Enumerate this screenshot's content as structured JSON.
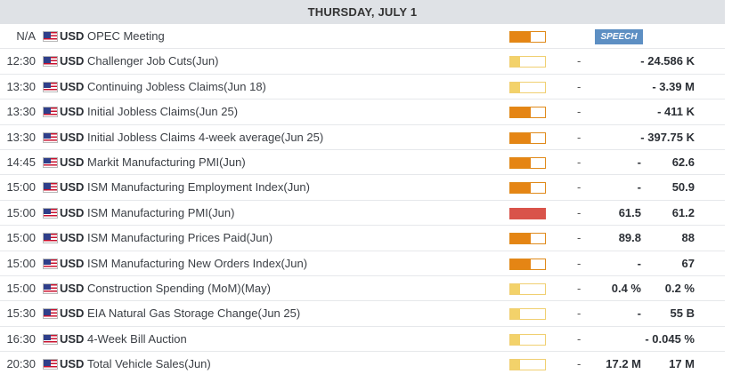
{
  "header": {
    "day": "THURSDAY, JULY 1"
  },
  "colors": {
    "medium_impact": "#e58514",
    "low_impact": "#f3d26a",
    "high_impact": "#d9534a",
    "speech_badge": "#5d8fc3"
  },
  "events": [
    {
      "time": "N/A",
      "currency": "USD",
      "flag": "us-flag-icon",
      "name": "OPEC Meeting",
      "impact": "medium",
      "badge": "SPEECH",
      "actual": "",
      "forecast": "",
      "previous": ""
    },
    {
      "time": "12:30",
      "currency": "USD",
      "flag": "us-flag-icon",
      "name": "Challenger Job Cuts(Jun)",
      "impact": "low",
      "actual": "-",
      "forecast": "",
      "previous": "- 24.586 K"
    },
    {
      "time": "13:30",
      "currency": "USD",
      "flag": "us-flag-icon",
      "name": "Continuing Jobless Claims(Jun 18)",
      "impact": "low",
      "actual": "-",
      "forecast": "",
      "previous": "- 3.39 M"
    },
    {
      "time": "13:30",
      "currency": "USD",
      "flag": "us-flag-icon",
      "name": "Initial Jobless Claims(Jun 25)",
      "impact": "medium",
      "actual": "-",
      "forecast": "",
      "previous": "- 411 K"
    },
    {
      "time": "13:30",
      "currency": "USD",
      "flag": "us-flag-icon",
      "name": "Initial Jobless Claims 4-week average(Jun 25)",
      "impact": "medium",
      "actual": "-",
      "forecast": "",
      "previous": "- 397.75 K"
    },
    {
      "time": "14:45",
      "currency": "USD",
      "flag": "us-flag-icon",
      "name": "Markit Manufacturing PMI(Jun)",
      "impact": "medium",
      "actual": "-",
      "forecast": "-",
      "previous": "62.6"
    },
    {
      "time": "15:00",
      "currency": "USD",
      "flag": "us-flag-icon",
      "name": "ISM Manufacturing Employment Index(Jun)",
      "impact": "medium",
      "actual": "-",
      "forecast": "-",
      "previous": "50.9"
    },
    {
      "time": "15:00",
      "currency": "USD",
      "flag": "us-flag-icon",
      "name": "ISM Manufacturing PMI(Jun)",
      "impact": "high",
      "actual": "-",
      "forecast": "61.5",
      "previous": "61.2"
    },
    {
      "time": "15:00",
      "currency": "USD",
      "flag": "us-flag-icon",
      "name": "ISM Manufacturing Prices Paid(Jun)",
      "impact": "medium",
      "actual": "-",
      "forecast": "89.8",
      "previous": "88"
    },
    {
      "time": "15:00",
      "currency": "USD",
      "flag": "us-flag-icon",
      "name": "ISM Manufacturing New Orders Index(Jun)",
      "impact": "medium",
      "actual": "-",
      "forecast": "-",
      "previous": "67"
    },
    {
      "time": "15:00",
      "currency": "USD",
      "flag": "us-flag-icon",
      "name": "Construction Spending (MoM)(May)",
      "impact": "low",
      "actual": "-",
      "forecast": "0.4 %",
      "previous": "0.2 %"
    },
    {
      "time": "15:30",
      "currency": "USD",
      "flag": "us-flag-icon",
      "name": "EIA Natural Gas Storage Change(Jun 25)",
      "impact": "low",
      "actual": "-",
      "forecast": "-",
      "previous": "55 B"
    },
    {
      "time": "16:30",
      "currency": "USD",
      "flag": "us-flag-icon",
      "name": "4-Week Bill Auction",
      "impact": "low",
      "actual": "-",
      "forecast": "",
      "previous": "- 0.045 %"
    },
    {
      "time": "20:30",
      "currency": "USD",
      "flag": "us-flag-icon",
      "name": "Total Vehicle Sales(Jun)",
      "impact": "low",
      "actual": "-",
      "forecast": "17.2 M",
      "previous": "17 M"
    }
  ]
}
